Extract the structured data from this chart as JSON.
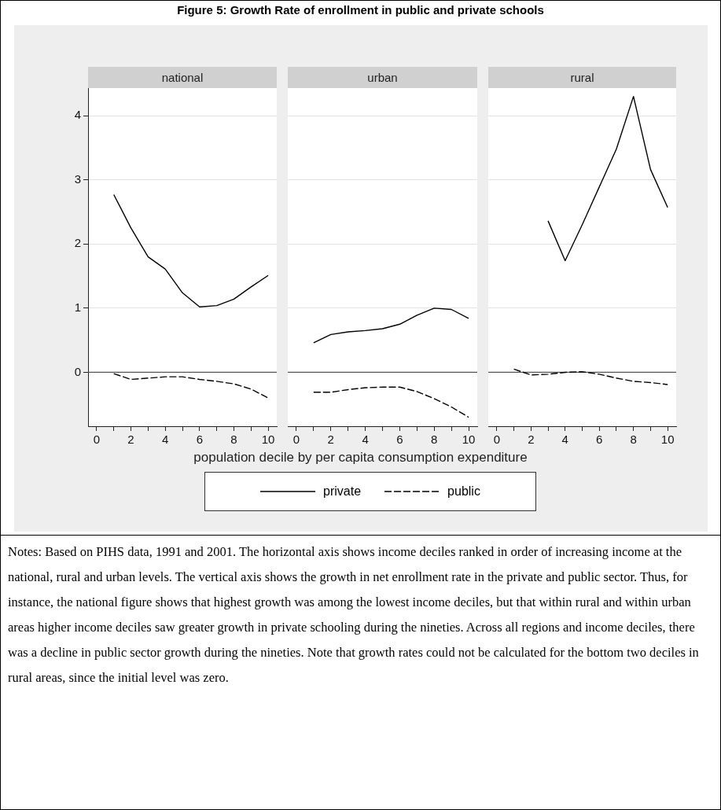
{
  "chart_data": [
    {
      "type": "line",
      "title": "national",
      "x": [
        1,
        2,
        3,
        4,
        5,
        6,
        7,
        8,
        9,
        10
      ],
      "series": [
        {
          "color": "#000000",
          "line_style": "solid",
          "values": [
            2.77,
            2.25,
            1.8,
            1.61,
            1.24,
            1.02,
            1.04,
            1.14,
            1.33,
            1.51
          ]
        },
        {
          "color": "#000000",
          "line_style": "dashed",
          "values": [
            -0.02,
            -0.11,
            -0.09,
            -0.07,
            -0.07,
            -0.11,
            -0.14,
            -0.18,
            -0.26,
            -0.4
          ]
        }
      ],
      "xlim": [
        -0.5,
        10.5
      ],
      "xticks": [
        0,
        {
          "value": 1,
          "label": null
        },
        2,
        {
          "value": 3,
          "label": null
        },
        4,
        {
          "value": 5,
          "label": null
        },
        6,
        {
          "value": 7,
          "label": null
        },
        8,
        {
          "value": 9,
          "label": null
        },
        10
      ],
      "ylim": [
        -0.84,
        4.43
      ],
      "yticks": [
        0,
        1,
        2,
        3,
        4
      ],
      "grid": "y",
      "marker": "none",
      "ref_lines": [
        {
          "axis": "y",
          "value": 0,
          "color": "#555555"
        }
      ],
      "annotations": [
        "Figure 5: Growth Rate of enrollment in public and private schools"
      ]
    },
    {
      "type": "line",
      "title": "urban",
      "x": [
        1,
        2,
        3,
        4,
        5,
        6,
        7,
        8,
        9,
        10
      ],
      "series": [
        {
          "name": "private",
          "color": "#000000",
          "line_style": "solid",
          "values": [
            0.46,
            0.59,
            0.63,
            0.65,
            0.68,
            0.75,
            0.89,
            1.0,
            0.98,
            0.84
          ]
        },
        {
          "name": "public",
          "color": "#000000",
          "line_style": "dashed",
          "values": [
            -0.31,
            -0.31,
            -0.27,
            -0.24,
            -0.23,
            -0.23,
            -0.3,
            -0.41,
            -0.54,
            -0.7
          ]
        }
      ],
      "xlim": [
        -0.5,
        10.5
      ],
      "xticks": [
        0,
        {
          "value": 1,
          "label": null
        },
        2,
        {
          "value": 3,
          "label": null
        },
        4,
        {
          "value": 5,
          "label": null
        },
        6,
        {
          "value": 7,
          "label": null
        },
        8,
        {
          "value": 9,
          "label": null
        },
        10
      ],
      "ylim": [
        -0.84,
        4.43
      ],
      "yticks": [
        0,
        1,
        2,
        3,
        4
      ],
      "grid": "y",
      "marker": "none",
      "tick_labels": "x",
      "xlabel": "population decile by per capita consumption expenditure",
      "legend": "bottom",
      "ref_lines": [
        {
          "axis": "y",
          "value": 0,
          "color": "#555555"
        }
      ]
    },
    {
      "type": "line",
      "title": "rural",
      "x": [
        1,
        2,
        3,
        4,
        5,
        6,
        7,
        8,
        9,
        10
      ],
      "series": [
        {
          "color": "#000000",
          "line_style": "solid",
          "x": [
            3,
            4,
            5,
            6,
            7,
            8,
            9,
            10
          ],
          "values": [
            2.36,
            1.74,
            2.3,
            2.89,
            3.48,
            4.3,
            3.16,
            2.57
          ]
        },
        {
          "color": "#000000",
          "line_style": "dashed",
          "values": [
            0.05,
            -0.04,
            -0.03,
            0,
            0.01,
            -0.03,
            -0.09,
            -0.14,
            -0.16,
            -0.19
          ]
        }
      ],
      "xlim": [
        -0.5,
        10.5
      ],
      "xticks": [
        0,
        {
          "value": 1,
          "label": null
        },
        2,
        {
          "value": 3,
          "label": null
        },
        4,
        {
          "value": 5,
          "label": null
        },
        6,
        {
          "value": 7,
          "label": null
        },
        8,
        {
          "value": 9,
          "label": null
        },
        10
      ],
      "ylim": [
        -0.84,
        4.43
      ],
      "yticks": [
        0,
        1,
        2,
        3,
        4
      ],
      "grid": "y",
      "marker": "none",
      "tick_labels": "x",
      "ref_lines": [
        {
          "axis": "y",
          "value": 0,
          "color": "#555555"
        }
      ],
      "annotations": [
        "Notes: Based on PIHS data, 1991 and 2001. The horizontal axis shows income deciles ranked in order of increasing income at the national, rural and urban levels. The vertical axis shows the growth in net enrollment rate in the private and public sector. Thus, for instance, the national figure shows that highest growth was among the lowest income deciles, but that within rural and within urban areas higher income deciles saw greater growth in private schooling during the nineties. Across all regions and income deciles, there was a decline in public sector growth during the nineties. Note that growth rates could not be calculated for the bottom two deciles in rural areas, since the initial level was zero."
      ]
    }
  ]
}
